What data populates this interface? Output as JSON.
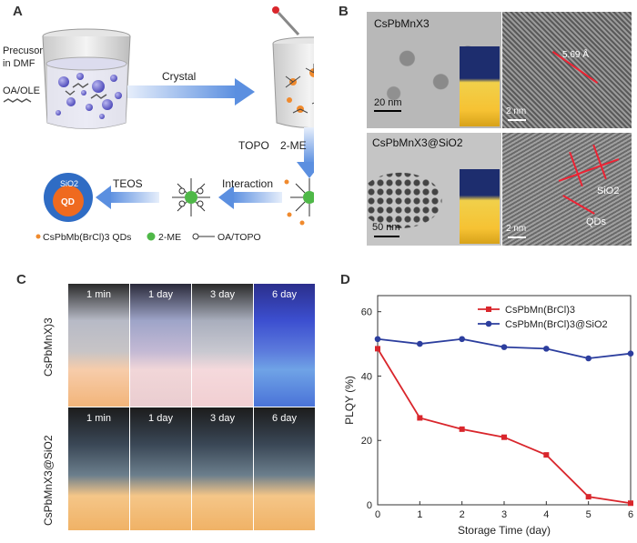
{
  "panels": {
    "a": "A",
    "b": "B",
    "c": "C",
    "d": "D"
  },
  "panel_a": {
    "precursor_line1": "Precusor",
    "precursor_line2": "in DMF",
    "ligand": "OA/OLE",
    "crystal": "Crystal",
    "topo": "TOPO",
    "two_me": "2-ME",
    "interaction": "Interaction",
    "teos": "TEOS",
    "sio2": "SiO2",
    "qd": "QD",
    "legend_qd": "CsPbMb(BrCl)3 QDs",
    "legend_2me": "2-ME",
    "legend_oa": "OA/TOPO"
  },
  "panel_b": {
    "top_title": "CsPbMnX3",
    "top_scale": "20 nm",
    "top_hr_scale": "2 nm",
    "lattice": "5.69 Å",
    "bottom_title": "CsPbMnX3@SiO2",
    "bottom_scale": "50 nm",
    "bottom_hr_scale": "2 nm",
    "sio2_label": "SiO2",
    "qds_label": "QDs"
  },
  "panel_c": {
    "row1_label": "CsPbMnX)3",
    "row2_label": "CsPbMnX3@SiO2",
    "times": [
      "1 min",
      "1 day",
      "3 day",
      "6 day"
    ]
  },
  "chart_data": {
    "type": "line",
    "xlabel": "Storage Time (day)",
    "ylabel": "PLQY (%)",
    "xlim": [
      0,
      6
    ],
    "ylim": [
      0,
      65
    ],
    "xticks": [
      0,
      1,
      2,
      3,
      4,
      5,
      6
    ],
    "yticks": [
      0,
      20,
      40,
      60
    ],
    "legend_position": "top-right",
    "series": [
      {
        "name": "CsPbMn(BrCl)3",
        "color": "#d9262c",
        "marker": "square",
        "x": [
          0,
          1,
          2,
          3,
          4,
          5,
          6
        ],
        "y": [
          48.5,
          27,
          23.5,
          21,
          15.5,
          2.5,
          0.5
        ]
      },
      {
        "name": "CsPbMn(BrCl)3@SiO2",
        "color": "#2c3e9e",
        "marker": "circle",
        "x": [
          0,
          1,
          2,
          3,
          4,
          5,
          6
        ],
        "y": [
          51.5,
          50,
          51.5,
          49,
          48.5,
          45.5,
          47
        ]
      }
    ]
  }
}
